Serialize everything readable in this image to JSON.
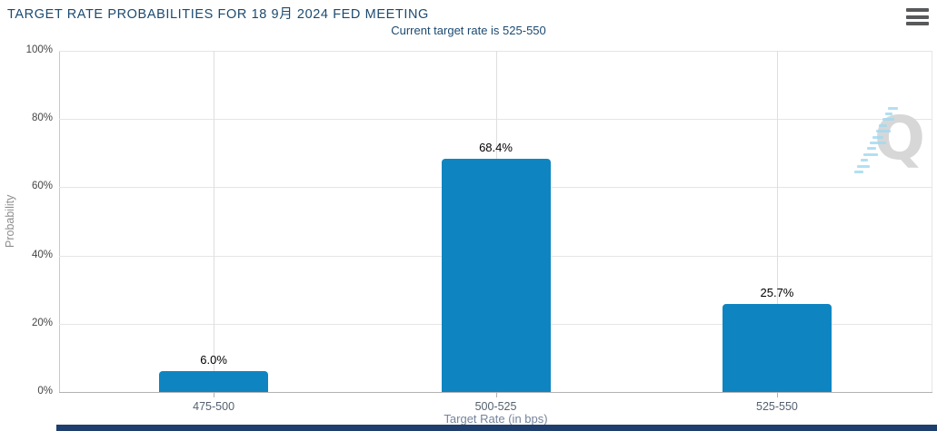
{
  "header": {
    "title": "TARGET RATE PROBABILITIES FOR 18 9月 2024 FED MEETING",
    "subtitle": "Current target rate is 525-550"
  },
  "icons": {
    "menu": "hamburger-icon",
    "watermark": "quikstrike-q-logo"
  },
  "watermark": {
    "letter": "Q"
  },
  "chart_data": {
    "type": "bar",
    "title": "TARGET RATE PROBABILITIES FOR 18 9月 2024 FED MEETING",
    "subtitle": "Current target rate is 525-550",
    "categories": [
      "475-500",
      "500-525",
      "525-550"
    ],
    "values": [
      6.0,
      68.4,
      25.7
    ],
    "value_labels": [
      "6.0%",
      "68.4%",
      "25.7%"
    ],
    "xlabel": "Target Rate (in bps)",
    "ylabel": "Probability",
    "ylim": [
      0,
      100
    ],
    "ytick_values": [
      0,
      20,
      40,
      60,
      80,
      100
    ],
    "ytick_labels": [
      "0%",
      "20%",
      "40%",
      "60%",
      "80%",
      "100%"
    ],
    "grid": true,
    "legend": "none"
  },
  "colors": {
    "title": "#1c4a70",
    "bar": "#0e85c1",
    "gridline": "#e5e5e5",
    "vgridline": "#dedede",
    "axis_line": "#b3b3b3",
    "value_label": "#000000",
    "tick_label": "#444444",
    "category_label": "#546170",
    "axis_title": "#75849a",
    "watermark_gray": "#d7d7d7",
    "watermark_blue": "#a5d9f0",
    "bottom_bar": "#1e3f6d",
    "menu_icon": "#58595b"
  }
}
